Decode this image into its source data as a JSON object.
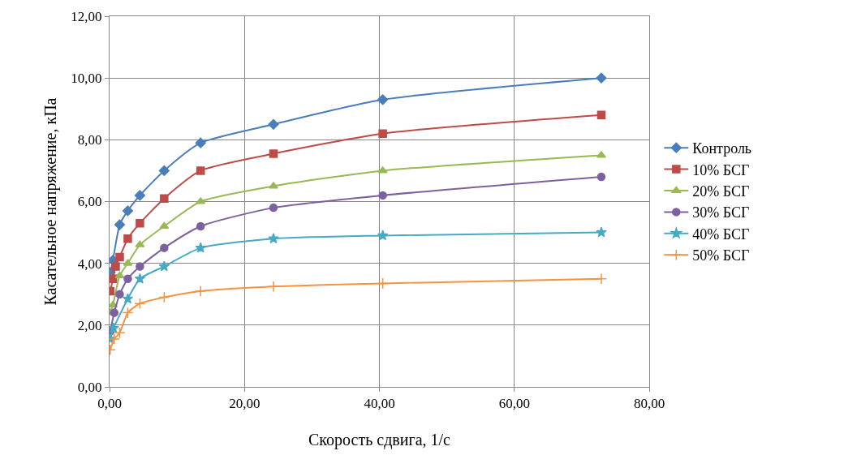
{
  "chart_data": {
    "type": "line",
    "xlabel": "Скорость сдвига, 1/с",
    "ylabel": "Касательное напряжение, кПа",
    "xlim": [
      0,
      80
    ],
    "ylim": [
      0,
      12
    ],
    "xticks": [
      {
        "value": 0,
        "label": "0,00"
      },
      {
        "value": 20,
        "label": "20,00"
      },
      {
        "value": 40,
        "label": "40,00"
      },
      {
        "value": 60,
        "label": "60,00"
      },
      {
        "value": 80,
        "label": "80,00"
      }
    ],
    "yticks": [
      {
        "value": 0,
        "label": "0,00"
      },
      {
        "value": 2,
        "label": "2,00"
      },
      {
        "value": 4,
        "label": "4,00"
      },
      {
        "value": 6,
        "label": "6,00"
      },
      {
        "value": 8,
        "label": "8,00"
      },
      {
        "value": 10,
        "label": "10,00"
      },
      {
        "value": 12,
        "label": "12,00"
      }
    ],
    "grid": true,
    "legend": "right",
    "line_style": "solid",
    "series": [
      {
        "name": "Контроль",
        "color": "#4a7ebb",
        "marker": "diamond",
        "x": [
          0.1,
          0.5,
          1.5,
          2.7,
          4.5,
          8.1,
          13.5,
          24.3,
          40.5,
          72.9
        ],
        "values": [
          3.7,
          4.1,
          5.25,
          5.7,
          6.2,
          7.0,
          7.9,
          8.5,
          9.3,
          10.0
        ]
      },
      {
        "name": "10% БСГ",
        "color": "#be4b48",
        "marker": "square",
        "x": [
          0.1,
          0.5,
          0.9,
          1.5,
          2.7,
          4.5,
          8.1,
          13.5,
          24.3,
          40.5,
          72.9
        ],
        "values": [
          3.1,
          3.5,
          3.9,
          4.2,
          4.8,
          5.3,
          6.1,
          7.0,
          7.55,
          8.2,
          8.8
        ]
      },
      {
        "name": "20% БСГ",
        "color": "#98b954",
        "marker": "triangle",
        "x": [
          0.1,
          0.5,
          1.5,
          2.7,
          4.5,
          8.1,
          13.5,
          24.3,
          40.5,
          72.9
        ],
        "values": [
          2.4,
          2.65,
          3.6,
          4.0,
          4.6,
          5.2,
          6.0,
          6.5,
          7.0,
          7.5
        ]
      },
      {
        "name": "30% БСГ",
        "color": "#7d60a0",
        "marker": "circle",
        "x": [
          0.1,
          0.7,
          1.5,
          2.7,
          4.5,
          8.1,
          13.5,
          24.3,
          40.5,
          72.9
        ],
        "values": [
          1.8,
          2.4,
          3.0,
          3.5,
          3.9,
          4.5,
          5.2,
          5.8,
          6.2,
          6.8
        ]
      },
      {
        "name": "40% БСГ",
        "color": "#46aac5",
        "marker": "star",
        "x": [
          0.1,
          0.6,
          2.7,
          4.5,
          8.1,
          13.5,
          24.3,
          40.5,
          72.9
        ],
        "values": [
          1.55,
          1.9,
          2.85,
          3.5,
          3.9,
          4.5,
          4.8,
          4.9,
          5.0
        ]
      },
      {
        "name": "50% БСГ",
        "color": "#f69240",
        "marker": "cross",
        "x": [
          0.1,
          0.7,
          1.5,
          2.7,
          4.5,
          8.1,
          13.5,
          24.3,
          40.5,
          72.9
        ],
        "values": [
          1.2,
          1.55,
          1.75,
          2.4,
          2.7,
          2.9,
          3.1,
          3.25,
          3.35,
          3.5
        ]
      }
    ]
  }
}
